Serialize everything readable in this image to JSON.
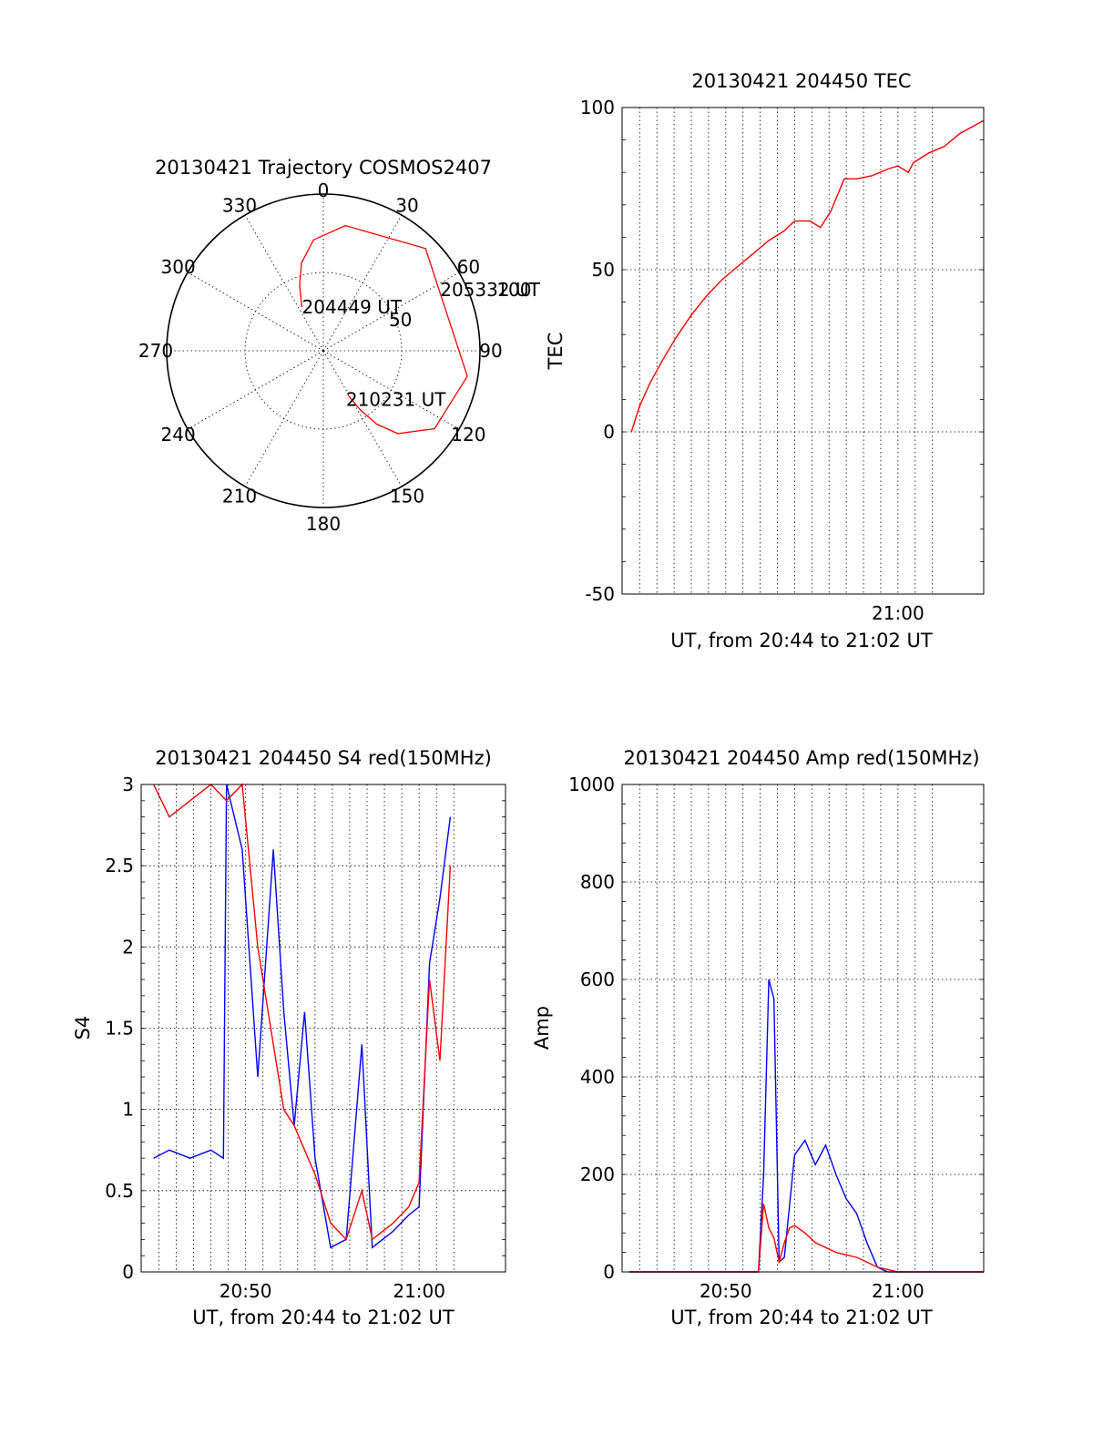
{
  "chart_data": [
    {
      "id": "trajectory",
      "type": "polar",
      "title": "20130421 Trajectory COSMOS2407",
      "angle_labels": [
        "0",
        "30",
        "60",
        "90",
        "120",
        "150",
        "180",
        "210",
        "240",
        "270",
        "300",
        "330"
      ],
      "radial_labels": [
        "50",
        "100"
      ],
      "radial_values": [
        50,
        100
      ],
      "rmax": 100,
      "track_color": "#ff0000",
      "track": [
        {
          "az": 334,
          "el": 62
        },
        {
          "az": 340,
          "el": 50
        },
        {
          "az": 346,
          "el": 38
        },
        {
          "az": 355,
          "el": 26
        },
        {
          "az": 10,
          "el": 17
        },
        {
          "az": 45,
          "el": 7
        },
        {
          "az": 100,
          "el": 6
        },
        {
          "az": 125,
          "el": 12
        },
        {
          "az": 138,
          "el": 26
        },
        {
          "az": 144,
          "el": 38
        },
        {
          "az": 148,
          "el": 50
        },
        {
          "az": 151,
          "el": 61
        }
      ],
      "annotations": [
        {
          "text": "204449 UT",
          "az": 334,
          "el": 62
        },
        {
          "text": "205332 UT",
          "az": 62,
          "el": 14
        },
        {
          "text": "210231 UT",
          "az": 151,
          "el": 61
        }
      ]
    },
    {
      "id": "tec",
      "type": "line",
      "title": "20130421 204450 TEC",
      "ylabel": "TEC",
      "xlabel": "UT, from 20:44 to 21:02 UT",
      "xlim": [
        20.733,
        21.083
      ],
      "ylim": [
        -50,
        100
      ],
      "yticks": [
        -50,
        0,
        50,
        100
      ],
      "xtick_labels": [
        {
          "value": 21.0,
          "label": "21:00"
        }
      ],
      "series": [
        {
          "color": "#ff0000",
          "x": [
            20.742,
            20.75,
            20.76,
            20.772,
            20.785,
            20.8,
            20.815,
            20.83,
            20.845,
            20.86,
            20.875,
            20.89,
            20.9,
            20.915,
            20.925,
            20.935,
            20.948,
            20.96,
            20.96,
            20.975,
            20.99,
            21.0,
            21.0,
            21.01,
            21.015,
            21.03,
            21.045,
            21.06,
            21.083
          ],
          "y": [
            0,
            8,
            15,
            22,
            29,
            36,
            42,
            47,
            51,
            55,
            59,
            62,
            65,
            65,
            63,
            68,
            78,
            78,
            78,
            79,
            81,
            82,
            82,
            80,
            83,
            86,
            88,
            92,
            96
          ]
        }
      ]
    },
    {
      "id": "s4",
      "type": "line",
      "title": "20130421 204450 S4 red(150MHz)",
      "ylabel": "S4",
      "xlabel": "UT, from 20:44 to 21:02 UT",
      "xlim": [
        20.733,
        21.083
      ],
      "ylim": [
        0,
        3
      ],
      "yticks": [
        0,
        0.5,
        1,
        1.5,
        2,
        2.5,
        3
      ],
      "ytick_labels": [
        "0",
        "0.5",
        "1",
        "1.5",
        "2",
        "2.5",
        "3"
      ],
      "xtick_labels": [
        {
          "value": 20.8333,
          "label": "20:50"
        },
        {
          "value": 21.0,
          "label": "21:00"
        }
      ],
      "series": [
        {
          "color": "#0000ff",
          "x": [
            20.745,
            20.76,
            20.78,
            20.8,
            20.812,
            20.815,
            20.83,
            20.845,
            20.86,
            20.87,
            20.88,
            20.89,
            20.9,
            20.915,
            20.93,
            20.945,
            20.955,
            20.965,
            20.975,
            20.99,
            21.0,
            21.01,
            21.02,
            21.03
          ],
          "y": [
            0.7,
            0.75,
            0.7,
            0.75,
            0.7,
            3.0,
            2.6,
            1.2,
            2.6,
            1.6,
            0.9,
            1.6,
            0.7,
            0.15,
            0.2,
            1.4,
            0.15,
            0.2,
            0.25,
            0.35,
            0.4,
            1.9,
            2.3,
            2.8
          ]
        },
        {
          "color": "#ff0000",
          "x": [
            20.745,
            20.76,
            20.78,
            20.8,
            20.815,
            20.83,
            20.845,
            20.86,
            20.87,
            20.88,
            20.89,
            20.9,
            20.915,
            20.93,
            20.945,
            20.955,
            20.965,
            20.975,
            20.99,
            21.0,
            21.01,
            21.02,
            21.03
          ],
          "y": [
            3.0,
            2.8,
            2.9,
            3.0,
            2.9,
            3.0,
            2.0,
            1.4,
            1.0,
            0.9,
            0.75,
            0.6,
            0.3,
            0.2,
            0.5,
            0.2,
            0.25,
            0.3,
            0.4,
            0.55,
            1.8,
            1.3,
            2.5
          ]
        }
      ]
    },
    {
      "id": "amp",
      "type": "line",
      "title": "20130421 204450 Amp red(150MHz)",
      "ylabel": "Amp",
      "xlabel": "UT, from 20:44 to 21:02 UT",
      "xlim": [
        20.733,
        21.083
      ],
      "ylim": [
        0,
        1000
      ],
      "yticks": [
        0,
        200,
        400,
        600,
        800,
        1000
      ],
      "xtick_labels": [
        {
          "value": 20.8333,
          "label": "20:50"
        },
        {
          "value": 21.0,
          "label": "21:00"
        }
      ],
      "series": [
        {
          "color": "#0000ff",
          "x": [
            20.74,
            20.85,
            20.865,
            20.87,
            20.875,
            20.88,
            20.885,
            20.89,
            20.9,
            20.91,
            20.92,
            20.93,
            20.94,
            20.95,
            20.96,
            20.97,
            20.98,
            20.99,
            21.0,
            21.083
          ],
          "y": [
            0,
            0,
            0,
            200,
            600,
            560,
            20,
            30,
            240,
            270,
            220,
            260,
            200,
            150,
            120,
            60,
            10,
            0,
            0,
            0
          ]
        },
        {
          "color": "#ff0000",
          "x": [
            20.74,
            20.85,
            20.865,
            20.87,
            20.875,
            20.88,
            20.885,
            20.89,
            20.895,
            20.9,
            20.91,
            20.92,
            20.93,
            20.94,
            20.95,
            20.96,
            20.97,
            20.98,
            21.0,
            21.083
          ],
          "y": [
            0,
            0,
            0,
            140,
            90,
            70,
            20,
            60,
            90,
            95,
            80,
            60,
            50,
            40,
            35,
            30,
            20,
            10,
            0,
            0
          ]
        }
      ]
    }
  ]
}
